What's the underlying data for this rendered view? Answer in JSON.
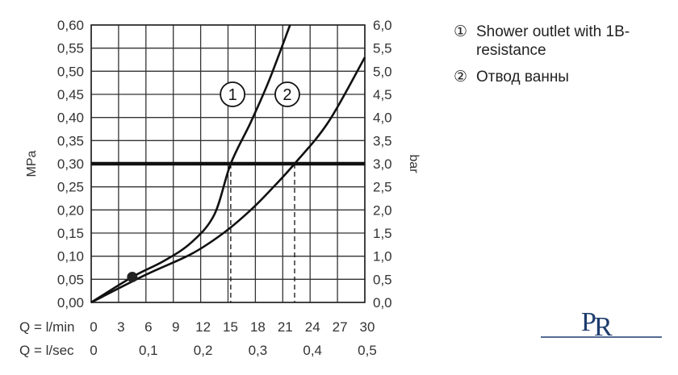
{
  "chart_data": {
    "type": "line",
    "y_left": {
      "label": "MPa",
      "ticks": [
        "0,00",
        "0,05",
        "0,10",
        "0,15",
        "0,20",
        "0,25",
        "0,30",
        "0,35",
        "0,40",
        "0,45",
        "0,50",
        "0,55",
        "0,60"
      ],
      "range": [
        0,
        0.6
      ]
    },
    "y_right": {
      "label": "bar",
      "ticks": [
        "0,0",
        "0,5",
        "1,0",
        "1,5",
        "2,0",
        "2,5",
        "3,0",
        "3,5",
        "4,0",
        "4,5",
        "5,0",
        "5,5",
        "6,0"
      ],
      "range": [
        0,
        6
      ]
    },
    "x_primary": {
      "label": "Q = l/min",
      "ticks": [
        "0",
        "3",
        "6",
        "9",
        "12",
        "15",
        "18",
        "21",
        "24",
        "27",
        "30"
      ],
      "range": [
        0,
        30
      ]
    },
    "x_secondary": {
      "label": "Q = l/sec",
      "ticks": [
        "0",
        "0,1",
        "0,2",
        "0,3",
        "0,4",
        "0,5"
      ]
    },
    "series": [
      {
        "marker": "1",
        "points": [
          [
            0,
            0
          ],
          [
            4.5,
            0.055
          ],
          [
            8,
            0.09
          ],
          [
            11,
            0.13
          ],
          [
            13.5,
            0.19
          ],
          [
            15.3,
            0.3
          ],
          [
            17.5,
            0.39
          ],
          [
            19.5,
            0.48
          ],
          [
            21.8,
            0.6
          ]
        ]
      },
      {
        "marker": "2",
        "points": [
          [
            0,
            0
          ],
          [
            6,
            0.06
          ],
          [
            11,
            0.105
          ],
          [
            14.5,
            0.15
          ],
          [
            17.5,
            0.2
          ],
          [
            20,
            0.25
          ],
          [
            22.3,
            0.3
          ],
          [
            26,
            0.39
          ],
          [
            30,
            0.53
          ]
        ]
      }
    ],
    "reference_line": {
      "y": 0.3
    },
    "intersections_x": [
      15.3,
      22.3
    ],
    "point": [
      4.5,
      0.055
    ]
  },
  "legend": [
    {
      "num": "①",
      "text": "Shower outlet with 1B-resistance"
    },
    {
      "num": "②",
      "text": "Отвод ванны"
    }
  ]
}
